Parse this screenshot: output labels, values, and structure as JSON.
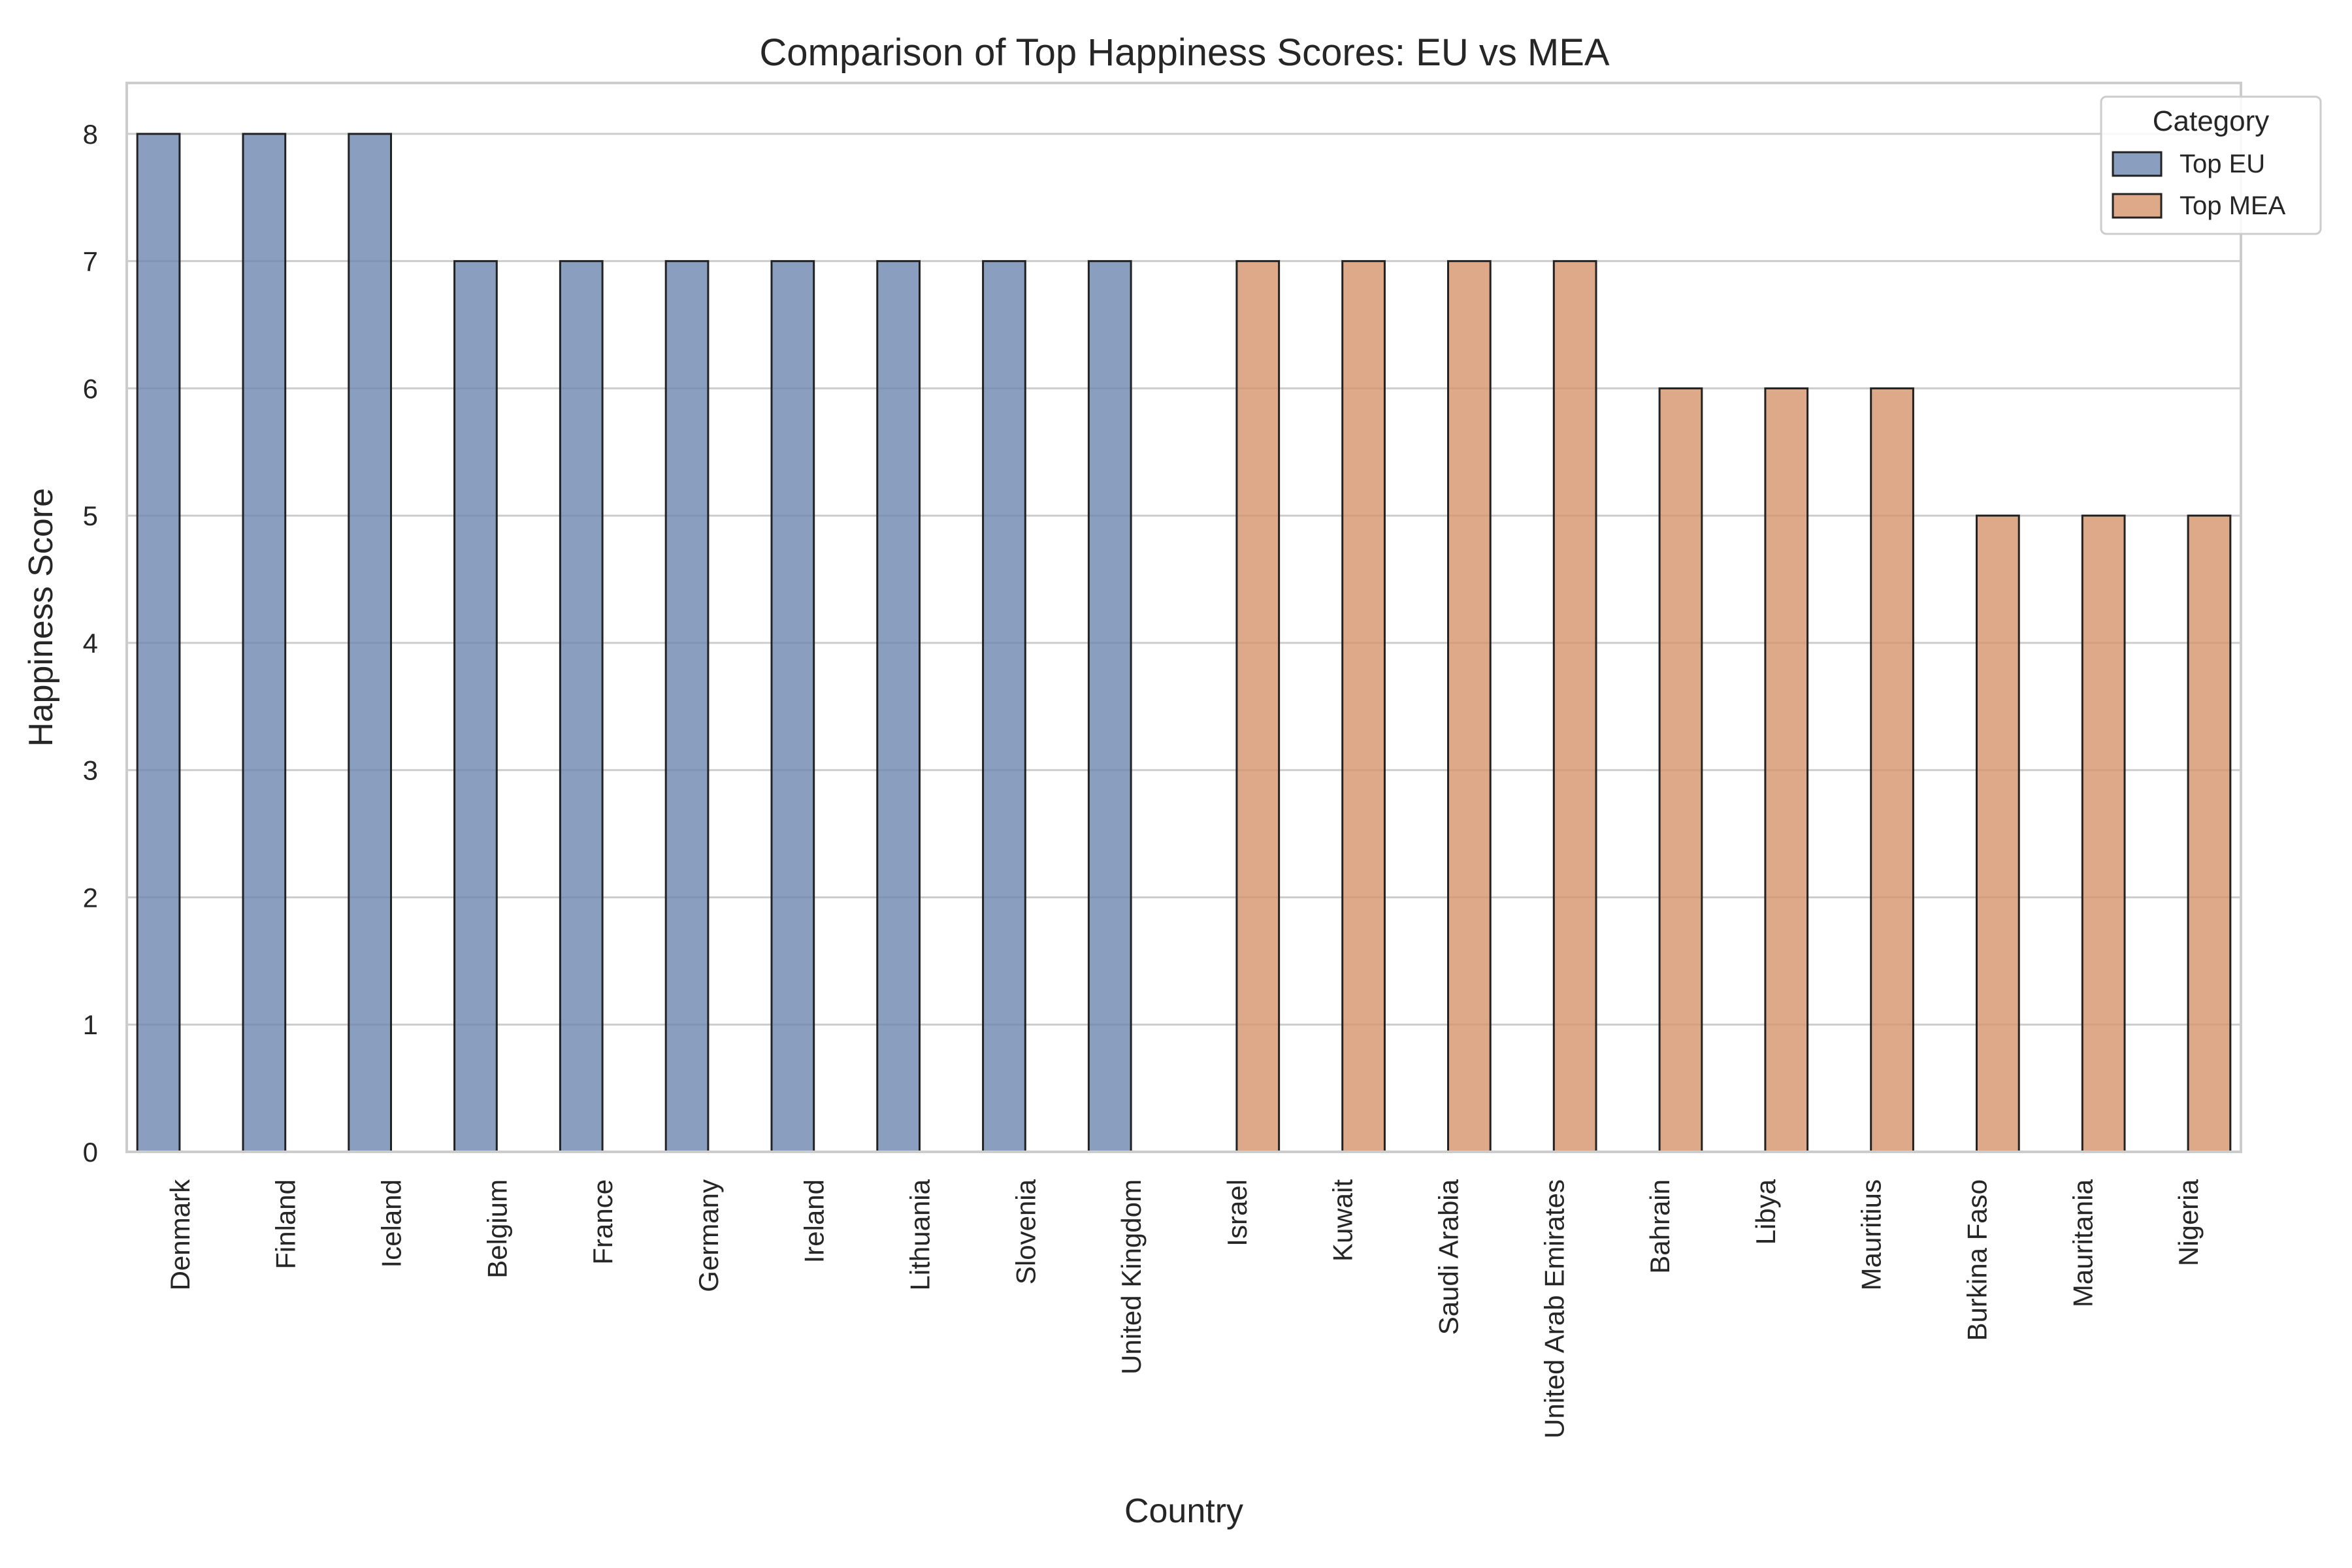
{
  "chart_data": {
    "type": "bar",
    "title": "Comparison of Top Happiness Scores: EU vs MEA",
    "xlabel": "Country",
    "ylabel": "Happiness Score",
    "ylim": [
      0,
      8.4
    ],
    "yticks": [
      0,
      1,
      2,
      3,
      4,
      5,
      6,
      7,
      8
    ],
    "grid": true,
    "categories": [
      "Denmark",
      "Finland",
      "Iceland",
      "Belgium",
      "France",
      "Germany",
      "Ireland",
      "Lithuania",
      "Slovenia",
      "United Kingdom",
      "Israel",
      "Kuwait",
      "Saudi Arabia",
      "United Arab Emirates",
      "Bahrain",
      "Libya",
      "Mauritius",
      "Burkina Faso",
      "Mauritania",
      "Nigeria"
    ],
    "series": [
      {
        "name": "Top EU",
        "color": "#6d86b0",
        "values": [
          8,
          8,
          8,
          7,
          7,
          7,
          7,
          7,
          7,
          7,
          null,
          null,
          null,
          null,
          null,
          null,
          null,
          null,
          null,
          null
        ]
      },
      {
        "name": "Top MEA",
        "color": "#d5946a",
        "values": [
          null,
          null,
          null,
          null,
          null,
          null,
          null,
          null,
          null,
          null,
          7,
          7,
          7,
          7,
          6,
          6,
          6,
          5,
          5,
          5
        ]
      }
    ],
    "legend": {
      "title": "Category",
      "position": "top-right"
    }
  }
}
